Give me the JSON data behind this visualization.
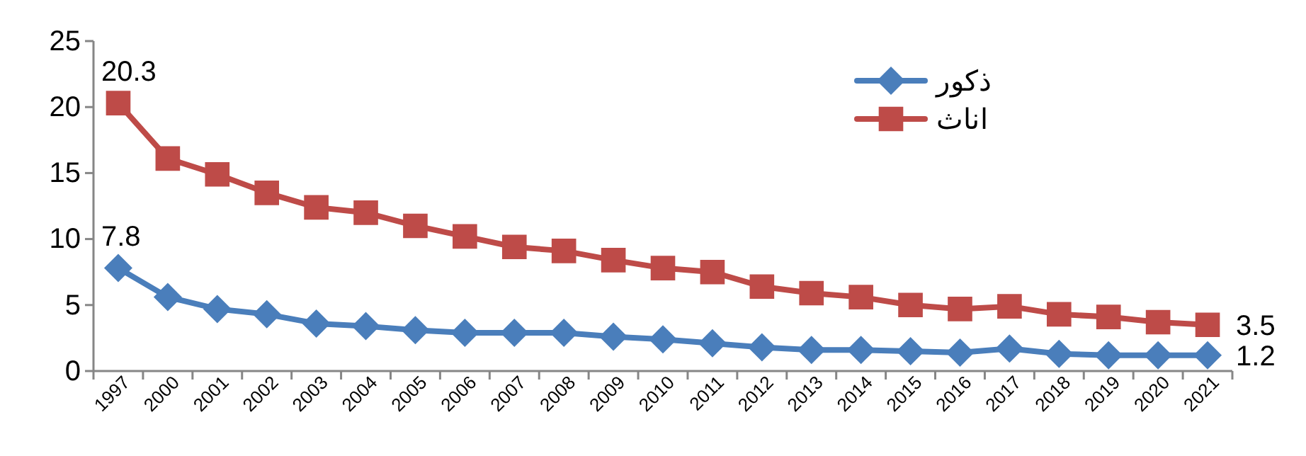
{
  "chart_data": {
    "type": "line",
    "categories": [
      "1997",
      "2000",
      "2001",
      "2002",
      "2003",
      "2004",
      "2005",
      "2006",
      "2007",
      "2008",
      "2009",
      "2010",
      "2011",
      "2012",
      "2013",
      "2014",
      "2015",
      "2016",
      "2017",
      "2018",
      "2019",
      "2020",
      "2021"
    ],
    "series": [
      {
        "name": "ذكور",
        "color": "#4a7ebb",
        "marker": "diamond",
        "values": [
          7.8,
          5.6,
          4.7,
          4.3,
          3.6,
          3.4,
          3.1,
          2.9,
          2.9,
          2.9,
          2.6,
          2.4,
          2.1,
          1.8,
          1.6,
          1.6,
          1.5,
          1.4,
          1.7,
          1.3,
          1.2,
          1.2,
          1.2
        ],
        "value_labels": [
          "7.8",
          null,
          null,
          null,
          null,
          null,
          null,
          null,
          null,
          null,
          null,
          null,
          null,
          null,
          null,
          null,
          null,
          null,
          null,
          null,
          null,
          null,
          "1.2"
        ]
      },
      {
        "name": "اناث",
        "color": "#be4b48",
        "marker": "square",
        "values": [
          20.3,
          16.1,
          14.9,
          13.5,
          12.4,
          12.0,
          11.0,
          10.2,
          9.4,
          9.1,
          8.4,
          7.8,
          7.5,
          6.4,
          5.9,
          5.6,
          5.0,
          4.7,
          4.9,
          4.3,
          4.1,
          3.7,
          3.5
        ],
        "value_labels": [
          "20.3",
          null,
          null,
          null,
          null,
          null,
          null,
          null,
          null,
          null,
          null,
          null,
          null,
          null,
          null,
          null,
          null,
          null,
          null,
          null,
          null,
          null,
          "3.5"
        ]
      }
    ],
    "ylim": [
      0,
      25
    ],
    "yticks": [
      0,
      5,
      10,
      15,
      20,
      25
    ],
    "grid": false,
    "legend": "top",
    "line_style": "solid"
  }
}
